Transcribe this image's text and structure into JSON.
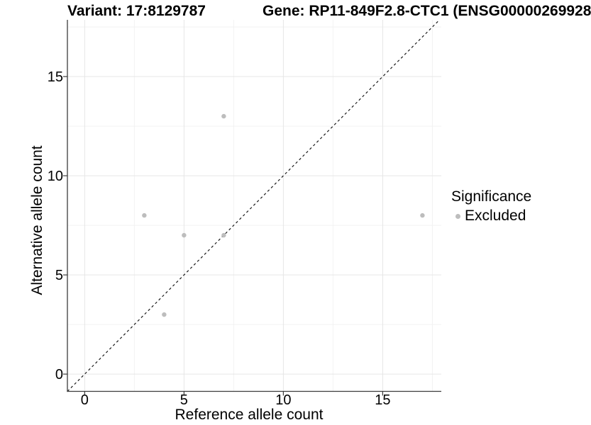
{
  "chart_data": {
    "type": "scatter",
    "title_left": "Variant: 17:8129787",
    "title_right": "Gene: RP11-849F2.8-CTC1 (ENSG00000269928",
    "xlabel": "Reference allele count",
    "ylabel": "Alternative allele count",
    "xlim": [
      -0.87,
      17.95
    ],
    "ylim": [
      -0.87,
      17.86
    ],
    "x_ticks": [
      0,
      5,
      10,
      15
    ],
    "y_ticks": [
      0,
      5,
      10,
      15
    ],
    "x_minor_ticks": [
      2.5,
      7.5,
      12.5,
      17.5
    ],
    "y_minor_ticks": [
      2.5,
      7.5,
      12.5,
      17.5
    ],
    "grid": "major+minor",
    "legend": {
      "title": "Significance",
      "position": "right",
      "items": [
        {
          "label": "Excluded",
          "color": "#bdbdbd"
        }
      ]
    },
    "series": [
      {
        "name": "Excluded",
        "color": "#bdbdbd",
        "points": [
          [
            3,
            8
          ],
          [
            4,
            3
          ],
          [
            5,
            7
          ],
          [
            7,
            7
          ],
          [
            7,
            13
          ],
          [
            17,
            8
          ]
        ]
      }
    ],
    "reference_line": {
      "type": "identity y=x",
      "style": "dashed",
      "color": "#1a1a1a"
    }
  },
  "colors": {
    "background": "#ffffff",
    "axis_line": "#3c3c3c",
    "grid_major": "#e6e6e6",
    "grid_minor": "#f2f2f2",
    "text": "#000000",
    "point": "#bdbdbd"
  }
}
